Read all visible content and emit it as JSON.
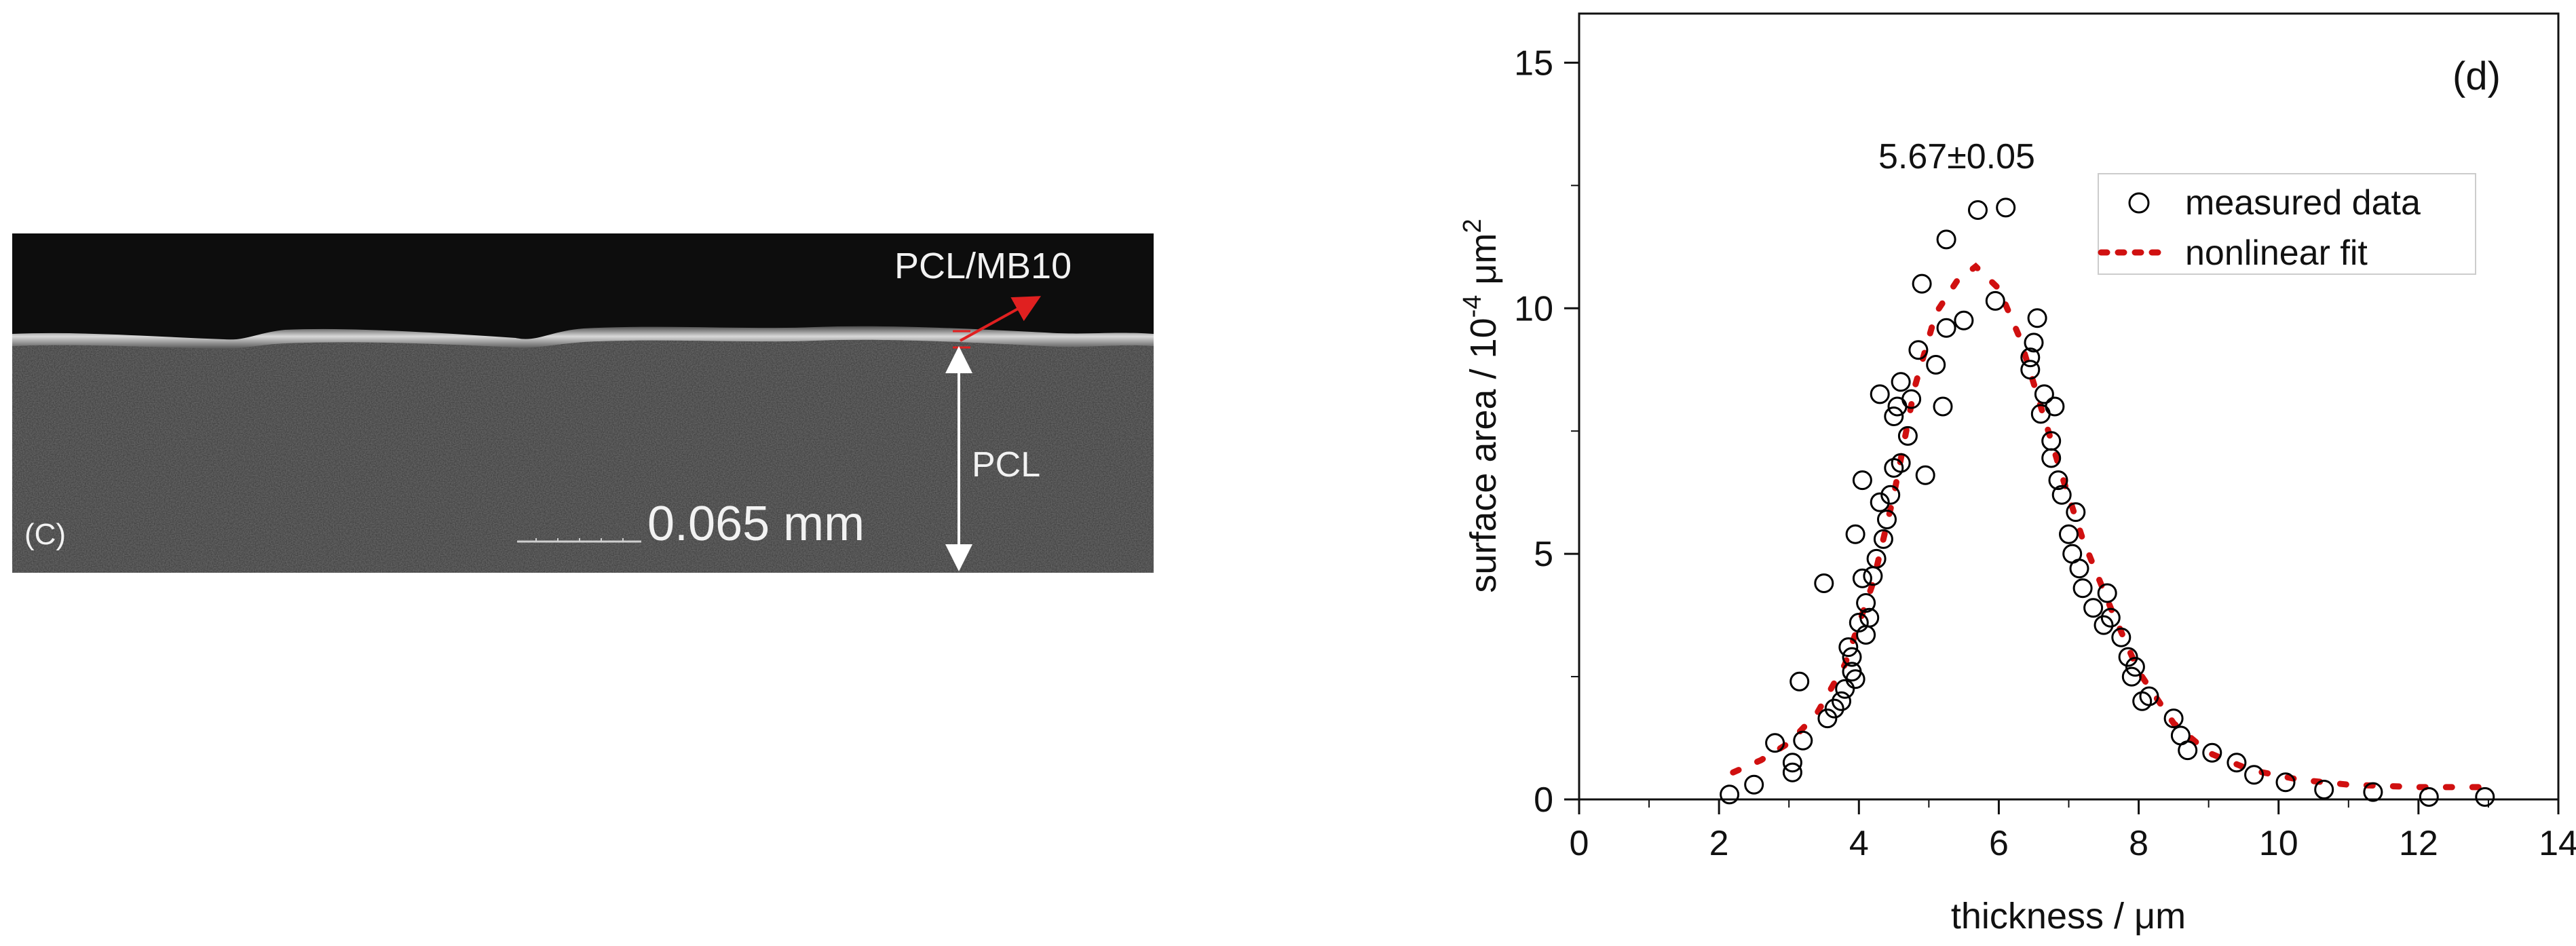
{
  "micrograph": {
    "panel_label": "(C)",
    "top_layer_label": "PCL/MB10",
    "bulk_layer_label": "PCL",
    "scale_text": "0.065 mm"
  },
  "chart_data": {
    "type": "scatter",
    "panel_label": "(d)",
    "title": "",
    "xlabel": "thickness / μm",
    "ylabel_main": "surface area / 10",
    "ylabel_exp": "-4",
    "ylabel_unit": " μm",
    "ylabel_unit_exp": "2",
    "xlim": [
      0,
      14
    ],
    "ylim": [
      0,
      16
    ],
    "x_ticks": [
      0,
      2,
      4,
      6,
      8,
      10,
      12,
      14
    ],
    "y_ticks": [
      0,
      5,
      10,
      15
    ],
    "grid": false,
    "legend_position": "top-right",
    "annotation": "5.67±0.05",
    "series": [
      {
        "name": "measured data",
        "marker": "open-circle",
        "color": "#000000",
        "points": [
          [
            2.15,
            0.1
          ],
          [
            2.5,
            0.3
          ],
          [
            2.8,
            1.15
          ],
          [
            3.05,
            0.55
          ],
          [
            3.05,
            0.75
          ],
          [
            3.15,
            2.4
          ],
          [
            3.2,
            1.2
          ],
          [
            3.5,
            4.4
          ],
          [
            3.55,
            1.65
          ],
          [
            3.65,
            1.85
          ],
          [
            3.75,
            2.0
          ],
          [
            3.8,
            2.25
          ],
          [
            3.85,
            3.1
          ],
          [
            3.9,
            2.6
          ],
          [
            3.9,
            2.9
          ],
          [
            3.95,
            2.45
          ],
          [
            3.95,
            5.4
          ],
          [
            4.0,
            3.6
          ],
          [
            4.05,
            4.5
          ],
          [
            4.05,
            6.5
          ],
          [
            4.1,
            3.35
          ],
          [
            4.1,
            4.0
          ],
          [
            4.15,
            3.7
          ],
          [
            4.2,
            4.55
          ],
          [
            4.25,
            4.9
          ],
          [
            4.3,
            6.05
          ],
          [
            4.3,
            8.25
          ],
          [
            4.35,
            5.3
          ],
          [
            4.4,
            5.7
          ],
          [
            4.45,
            6.2
          ],
          [
            4.5,
            6.75
          ],
          [
            4.5,
            7.8
          ],
          [
            4.55,
            8.0
          ],
          [
            4.6,
            6.85
          ],
          [
            4.6,
            8.5
          ],
          [
            4.7,
            7.4
          ],
          [
            4.75,
            8.15
          ],
          [
            4.85,
            9.15
          ],
          [
            4.9,
            10.5
          ],
          [
            4.95,
            6.6
          ],
          [
            5.1,
            8.85
          ],
          [
            5.2,
            8.0
          ],
          [
            5.25,
            9.6
          ],
          [
            5.25,
            11.4
          ],
          [
            5.5,
            9.75
          ],
          [
            5.7,
            12.0
          ],
          [
            5.95,
            10.15
          ],
          [
            6.1,
            12.05
          ],
          [
            6.45,
            8.75
          ],
          [
            6.45,
            9.0
          ],
          [
            6.5,
            9.3
          ],
          [
            6.55,
            9.8
          ],
          [
            6.6,
            7.85
          ],
          [
            6.65,
            8.25
          ],
          [
            6.75,
            6.95
          ],
          [
            6.75,
            7.3
          ],
          [
            6.8,
            8.0
          ],
          [
            6.85,
            6.5
          ],
          [
            6.9,
            6.2
          ],
          [
            7.0,
            5.4
          ],
          [
            7.05,
            5.0
          ],
          [
            7.1,
            5.85
          ],
          [
            7.15,
            4.7
          ],
          [
            7.2,
            4.3
          ],
          [
            7.35,
            3.9
          ],
          [
            7.5,
            3.55
          ],
          [
            7.55,
            4.2
          ],
          [
            7.6,
            3.7
          ],
          [
            7.75,
            3.3
          ],
          [
            7.85,
            2.9
          ],
          [
            7.9,
            2.5
          ],
          [
            7.95,
            2.7
          ],
          [
            8.05,
            2.0
          ],
          [
            8.15,
            2.1
          ],
          [
            8.5,
            1.65
          ],
          [
            8.6,
            1.3
          ],
          [
            8.7,
            1.0
          ],
          [
            9.05,
            0.95
          ],
          [
            9.4,
            0.75
          ],
          [
            9.65,
            0.5
          ],
          [
            10.1,
            0.35
          ],
          [
            10.65,
            0.2
          ],
          [
            11.35,
            0.15
          ],
          [
            12.15,
            0.05
          ],
          [
            12.95,
            0.05
          ]
        ]
      },
      {
        "name": "nonlinear fit",
        "marker": "dotted-line",
        "color": "#d01010",
        "points": [
          [
            2.2,
            0.55
          ],
          [
            2.6,
            0.8
          ],
          [
            3.0,
            1.15
          ],
          [
            3.4,
            1.75
          ],
          [
            3.8,
            2.75
          ],
          [
            4.2,
            4.4
          ],
          [
            4.5,
            6.2
          ],
          [
            4.8,
            8.4
          ],
          [
            5.1,
            9.9
          ],
          [
            5.4,
            10.55
          ],
          [
            5.67,
            10.85
          ],
          [
            6.0,
            10.4
          ],
          [
            6.3,
            9.4
          ],
          [
            6.6,
            8.0
          ],
          [
            6.9,
            6.6
          ],
          [
            7.2,
            5.3
          ],
          [
            7.6,
            3.9
          ],
          [
            8.0,
            2.6
          ],
          [
            8.5,
            1.55
          ],
          [
            9.0,
            0.95
          ],
          [
            9.6,
            0.6
          ],
          [
            10.3,
            0.4
          ],
          [
            11.0,
            0.3
          ],
          [
            12.0,
            0.25
          ],
          [
            13.0,
            0.25
          ]
        ]
      }
    ]
  }
}
